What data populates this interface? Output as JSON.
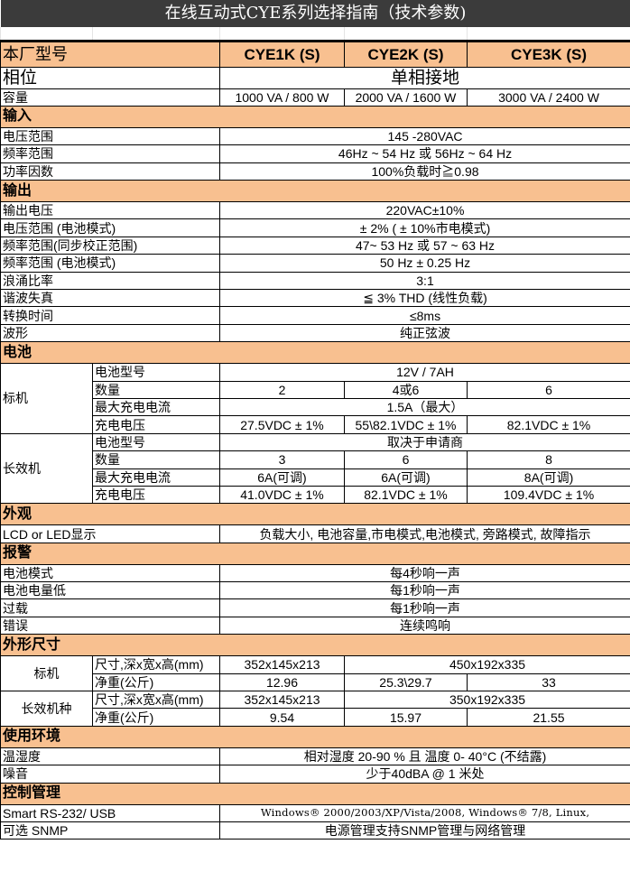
{
  "title": "在线互动式CYE系列选择指南（技术参数)",
  "header": {
    "label": "本厂型号",
    "models": [
      "CYE1K (S)",
      "CYE2K (S)",
      "CYE3K (S)"
    ]
  },
  "phase": {
    "label": "相位",
    "value": "单相接地"
  },
  "capacity": {
    "label": "容量",
    "values": [
      "1000 VA / 800 W",
      "2000 VA / 1600 W",
      "3000 VA / 2400 W"
    ]
  },
  "input": {
    "section": "输入",
    "rows": [
      {
        "label": "电压范围",
        "value": "145 -280VAC"
      },
      {
        "label": "频率范围",
        "value": "46Hz ~ 54 Hz 或 56Hz ~ 64 Hz"
      },
      {
        "label": "功率因数",
        "value": "100%负载时≧0.98"
      }
    ]
  },
  "output": {
    "section": "输出",
    "rows": [
      {
        "label": "输出电压",
        "value": "220VAC±10%"
      },
      {
        "label": "电压范围 (电池模式)",
        "value": "± 2%  ( ± 10%市电模式)"
      },
      {
        "label": "频率范围(同步校正范围)",
        "value": "47~ 53 Hz 或 57 ~ 63 Hz"
      },
      {
        "label": "频率范围 (电池模式)",
        "value": "50 Hz ± 0.25 Hz"
      },
      {
        "label": "浪涌比率",
        "value": "3:1"
      },
      {
        "label": "谐波失真",
        "value": "≦ 3% THD  (线性负载)"
      },
      {
        "label": "转换时间",
        "value": "≤8ms"
      },
      {
        "label": "波形",
        "value": "纯正弦波"
      }
    ]
  },
  "battery": {
    "section": "电池",
    "standard": {
      "label": "标机",
      "type_label": "电池型号",
      "type": "12V / 7AH",
      "count_label": "数量",
      "counts": [
        "2",
        "4或6",
        "6"
      ],
      "current_label": "最大充电电流",
      "current": "1.5A（最大）",
      "voltage_label": "充电电压",
      "voltages": [
        "27.5VDC ± 1%",
        "55\\82.1VDC ± 1%",
        "82.1VDC ± 1%"
      ]
    },
    "long_run": {
      "label": "长效机",
      "type_label": "电池型号",
      "type": "取决于申请商",
      "count_label": "数量",
      "counts": [
        "3",
        "6",
        "8"
      ],
      "current_label": "最大充电电流",
      "currents": [
        "6A(可调)",
        "6A(可调)",
        "8A(可调)"
      ],
      "voltage_label": "充电电压",
      "voltages": [
        "41.0VDC ± 1%",
        "82.1VDC ± 1%",
        "109.4VDC ± 1%"
      ]
    }
  },
  "appearance": {
    "section": "外观",
    "label": "LCD or LED显示",
    "value": "负载大小, 电池容量,市电模式,电池模式, 旁路模式, 故障指示"
  },
  "alarm": {
    "section": "报警",
    "rows": [
      {
        "label": "电池模式",
        "value": "每4秒响一声"
      },
      {
        "label": "电池电量低",
        "value": "每1秒响一声"
      },
      {
        "label": "过载",
        "value": "每1秒响一声"
      },
      {
        "label": "错误",
        "value": "连续鸣响"
      }
    ]
  },
  "dimensions": {
    "section": "外形尺寸",
    "standard": {
      "label": "标机",
      "size_label": "尺寸,深x宽x高(mm)",
      "size_1k": "352x145x213",
      "size_2k3k": "450x192x335",
      "weight_label": "净重(公斤)",
      "weights": [
        "12.96",
        "25.3\\29.7",
        "33"
      ]
    },
    "long_run": {
      "label": "长效机种",
      "size_label": "尺寸,深x宽x高(mm)",
      "size_1k": "352x145x213",
      "size_2k3k": "350x192x335",
      "weight_label": "净重(公斤)",
      "weights": [
        "9.54",
        "15.97",
        "21.55"
      ]
    }
  },
  "environment": {
    "section": "使用环境",
    "rows": [
      {
        "label": "温湿度",
        "value": "相对湿度 20-90 % 且 温度 0- 40°C (不结露)"
      },
      {
        "label": "噪音",
        "value": "少于40dBA @ 1 米处"
      }
    ]
  },
  "control": {
    "section": "控制管理",
    "rows": [
      {
        "label": "Smart RS-232/   USB",
        "value": "Windows® 2000/2003/XP/Vista/2008, Windows® 7/8, Linux,"
      },
      {
        "label": "可选 SNMP",
        "value": "电源管理支持SNMP管理与网络管理"
      }
    ]
  }
}
